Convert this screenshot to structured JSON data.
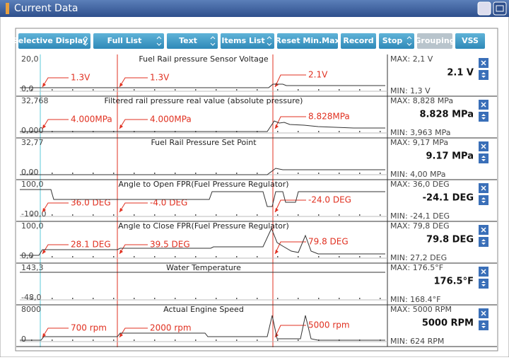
{
  "window": {
    "title": "Current Data"
  },
  "toolbar": {
    "buttons": [
      "Selective Display",
      "Full List",
      "Text",
      "Items List",
      "Reset Min.Max",
      "Record",
      "Stop",
      "Grouping",
      "VSS"
    ]
  },
  "rows": [
    {
      "top": "20,0",
      "bottom": "0,0",
      "title": "Fuel Rail pressure Sensor Voltage",
      "max": "MAX:  2,1 V",
      "value": "2.1 V",
      "min": "MIN:  1,3 V",
      "annotations": [
        "1.3V",
        "1.3V",
        "2.1V"
      ]
    },
    {
      "top": "32,768",
      "bottom": "0,000",
      "title": "Filtered rail pressure real value (absolute pressure)",
      "max": "MAX: 8,828 MPa",
      "value": "8.828 MPa",
      "min": "MIN: 3,963 MPa",
      "annotations": [
        "4.000MPa",
        "4.000MPa",
        "8.828MPa"
      ]
    },
    {
      "top": "32,77",
      "bottom": "0,00",
      "title": "Fuel Rail Pressure Set Point",
      "max": "MAX:  9,17 MPa",
      "value": "9.17 MPa",
      "min": "MIN:  4,00 MPa",
      "annotations": []
    },
    {
      "top": "100,0",
      "bottom": "-100,0",
      "title": "Angle to Open FPR(Fuel Pressure Regulator)",
      "max": "MAX:  36,0 DEG",
      "value": "-24.1 DEG",
      "min": "MIN: -24,1 DEG",
      "annotations": [
        "36.0 DEG",
        "-4.0 DEG",
        "-24.0 DEG"
      ]
    },
    {
      "top": "100,0",
      "bottom": "0,0",
      "title": "Angle to Close FPR(Fuel Pressure Regulator)",
      "max": "MAX:  79,8 DEG",
      "value": "79.8 DEG",
      "min": "MIN:  27,2 DEG",
      "annotations": [
        "28.1 DEG",
        "39.5 DEG",
        "79.8 DEG"
      ]
    },
    {
      "top": "143,3",
      "bottom": "-48,0",
      "title": "Water Temperature",
      "max": "MAX: 176.5°F",
      "value": "176.5°F",
      "min": "MIN: 168.4°F",
      "annotations": []
    },
    {
      "top": "8000",
      "bottom": "0",
      "title": "Actual Engine Speed",
      "max": "MAX:  5000 RPM",
      "value": "5000 RPM",
      "min": "MIN:  624 RPM",
      "annotations": [
        "700 rpm",
        "2000 rpm",
        "5000 rpm"
      ]
    }
  ]
}
